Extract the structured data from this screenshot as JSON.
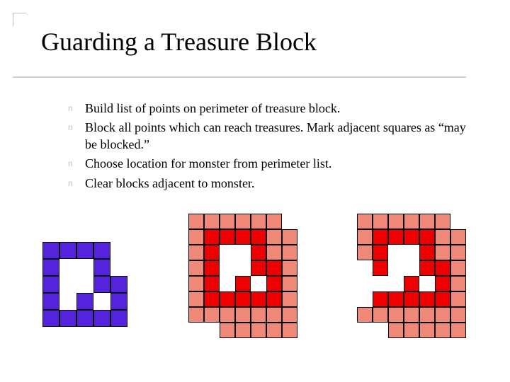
{
  "title": "Guarding a Treasure Block",
  "title_fontsize": 36,
  "bullet_marker": "n",
  "bullet_color": "#c0c0c0",
  "text_color": "#000000",
  "bullets": [
    "Build list of points on perimeter of treasure block.",
    "Block all points which can reach treasures.  Mark adjacent squares as “may be blocked.”",
    "Choose location for monster from perimeter list.",
    "Clear blocks adjacent to monster."
  ],
  "bullet_fontsize": 18,
  "colors": {
    "purple": "#5522dd",
    "red": "#ee0000",
    "salmon": "#f08878",
    "border": "#000000",
    "empty": "transparent"
  },
  "diagrams": [
    {
      "cell_size": 24,
      "cols": 6,
      "rows": 6,
      "offset_y": 0,
      "cells": [
        [
          0,
          0,
          0,
          0,
          0,
          0
        ],
        [
          1,
          1,
          1,
          1,
          0,
          0
        ],
        [
          1,
          0,
          0,
          1,
          0,
          0
        ],
        [
          1,
          0,
          0,
          1,
          1,
          0
        ],
        [
          1,
          0,
          1,
          0,
          1,
          0
        ],
        [
          1,
          1,
          1,
          1,
          1,
          0
        ]
      ],
      "palette": {
        "0": {
          "fill": "transparent",
          "border": "transparent"
        },
        "1": {
          "fill": "#5522dd",
          "border": "#000000"
        }
      }
    },
    {
      "cell_size": 22,
      "cols": 8,
      "rows": 8,
      "offset_y": 0,
      "cells": [
        [
          2,
          2,
          2,
          2,
          2,
          2,
          0,
          0
        ],
        [
          2,
          1,
          1,
          1,
          1,
          2,
          2,
          0
        ],
        [
          2,
          1,
          0,
          0,
          1,
          2,
          2,
          0
        ],
        [
          2,
          1,
          0,
          0,
          1,
          1,
          2,
          0
        ],
        [
          2,
          1,
          0,
          1,
          0,
          1,
          2,
          0
        ],
        [
          2,
          1,
          1,
          1,
          1,
          1,
          2,
          0
        ],
        [
          2,
          2,
          2,
          2,
          2,
          2,
          2,
          0
        ],
        [
          0,
          0,
          2,
          2,
          2,
          2,
          2,
          0
        ]
      ],
      "palette": {
        "0": {
          "fill": "transparent",
          "border": "transparent"
        },
        "1": {
          "fill": "#ee0000",
          "border": "#000000"
        },
        "2": {
          "fill": "#f08878",
          "border": "#000000"
        }
      }
    },
    {
      "cell_size": 22,
      "cols": 8,
      "rows": 8,
      "offset_y": 0,
      "cells": [
        [
          2,
          2,
          2,
          2,
          2,
          2,
          0,
          0
        ],
        [
          2,
          1,
          1,
          1,
          1,
          2,
          2,
          0
        ],
        [
          2,
          1,
          0,
          0,
          1,
          2,
          2,
          0
        ],
        [
          0,
          1,
          0,
          0,
          1,
          1,
          2,
          0
        ],
        [
          0,
          0,
          0,
          1,
          0,
          1,
          2,
          0
        ],
        [
          0,
          1,
          1,
          1,
          1,
          1,
          2,
          0
        ],
        [
          2,
          2,
          2,
          2,
          2,
          2,
          2,
          0
        ],
        [
          0,
          0,
          2,
          2,
          2,
          2,
          2,
          0
        ]
      ],
      "palette": {
        "0": {
          "fill": "transparent",
          "border": "transparent"
        },
        "1": {
          "fill": "#ee0000",
          "border": "#000000"
        },
        "2": {
          "fill": "#f08878",
          "border": "#000000"
        }
      }
    }
  ]
}
